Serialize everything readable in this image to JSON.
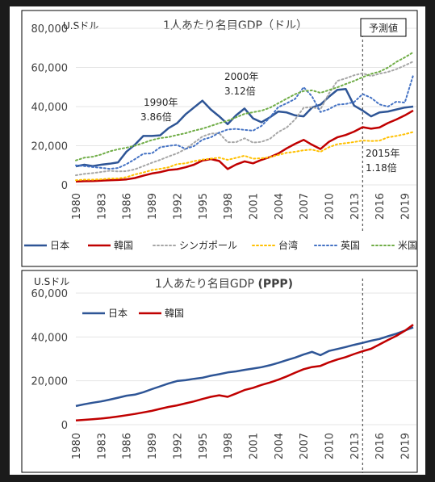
{
  "chart_data": [
    {
      "type": "line",
      "title": "1人あたり名目GDP（ドル）",
      "ylabel": "U.Sドル",
      "ylim": [
        0,
        80000
      ],
      "yticks": [
        "0",
        "20,000",
        "40,000",
        "60,000",
        "80,000"
      ],
      "x": [
        1980,
        1981,
        1982,
        1983,
        1984,
        1985,
        1986,
        1987,
        1988,
        1989,
        1990,
        1991,
        1992,
        1993,
        1994,
        1995,
        1996,
        1997,
        1998,
        1999,
        2000,
        2001,
        2002,
        2003,
        2004,
        2005,
        2006,
        2007,
        2008,
        2009,
        2010,
        2011,
        2012,
        2013,
        2014,
        2015,
        2016,
        2017,
        2018,
        2019,
        2020
      ],
      "xticks": [
        "1980",
        "1983",
        "1986",
        "1989",
        "1992",
        "1995",
        "1998",
        "2001",
        "2004",
        "2007",
        "2010",
        "2013",
        "2016",
        "2019"
      ],
      "forecast_from": 2014,
      "forecast_label": "予測値",
      "series": [
        {
          "name": "日本",
          "color": "#2e5596",
          "style": "solid",
          "values": [
            9500,
            10300,
            9600,
            10300,
            10800,
            11500,
            17000,
            20500,
            25000,
            25000,
            25300,
            29000,
            31500,
            36000,
            39500,
            43000,
            38500,
            35000,
            31000,
            35500,
            39000,
            34000,
            32000,
            34500,
            37500,
            37000,
            35500,
            35000,
            39500,
            41000,
            45000,
            48500,
            49000,
            40500,
            38000,
            35000,
            37000,
            37500,
            38500,
            39500,
            40000
          ]
        },
        {
          "name": "韓国",
          "color": "#c00000",
          "style": "solid",
          "values": [
            1700,
            1900,
            2000,
            2200,
            2400,
            2500,
            2800,
            3500,
            4700,
            5800,
            6500,
            7600,
            8000,
            9000,
            10300,
            12400,
            13200,
            12200,
            8100,
            10400,
            12000,
            11000,
            12800,
            14200,
            16000,
            18700,
            21000,
            23000,
            20500,
            18300,
            22000,
            24300,
            25500,
            27200,
            29500,
            28700,
            29300,
            31600,
            33400,
            35500,
            38000
          ]
        },
        {
          "name": "シンガポール",
          "color": "#a6a6a6",
          "style": "dot",
          "values": [
            4900,
            5600,
            6000,
            6600,
            7200,
            6900,
            7000,
            7900,
            9600,
            11300,
            12800,
            14500,
            16100,
            18300,
            21500,
            24700,
            26200,
            26400,
            21800,
            21800,
            23800,
            21600,
            22000,
            23500,
            27000,
            29300,
            33500,
            39400,
            39700,
            38600,
            46600,
            53100,
            54400,
            56000,
            57000,
            55600,
            56800,
            57700,
            59100,
            61000,
            63000
          ]
        },
        {
          "name": "台湾",
          "color": "#ffc000",
          "style": "dot",
          "values": [
            2400,
            2700,
            2700,
            2900,
            3200,
            3300,
            3900,
            5300,
            6300,
            7600,
            8200,
            9000,
            10600,
            11000,
            12100,
            12900,
            13400,
            13900,
            12800,
            13800,
            14900,
            13400,
            13600,
            14100,
            15300,
            16400,
            16900,
            17700,
            18000,
            16900,
            19200,
            20800,
            21300,
            21900,
            22700,
            22400,
            22600,
            24300,
            25000,
            25900,
            27000
          ]
        },
        {
          "name": "英国",
          "color": "#4472c4",
          "style": "dot",
          "values": [
            10000,
            9600,
            9100,
            8700,
            8200,
            8600,
            10600,
            13100,
            15900,
            16100,
            19200,
            19900,
            20400,
            18400,
            19800,
            23100,
            24300,
            26700,
            28300,
            28600,
            28100,
            27700,
            30100,
            34400,
            39700,
            41700,
            43900,
            49900,
            45200,
            37200,
            38700,
            41000,
            41300,
            42300,
            46400,
            44500,
            41100,
            40000,
            42500,
            42000,
            56000
          ]
        },
        {
          "name": "米国",
          "color": "#70ad47",
          "style": "dot",
          "values": [
            12500,
            13900,
            14400,
            15500,
            17100,
            18200,
            19000,
            20000,
            21400,
            22900,
            23900,
            24400,
            25500,
            26400,
            27700,
            28700,
            30100,
            31500,
            32800,
            34500,
            36300,
            37100,
            37900,
            39400,
            41700,
            44100,
            46300,
            47900,
            48300,
            47000,
            48400,
            49800,
            51500,
            53100,
            55000,
            56700,
            57800,
            59900,
            62800,
            65100,
            67700
          ]
        }
      ],
      "annotations": [
        {
          "year": "1990年",
          "text": "3.86倍"
        },
        {
          "year": "2000年",
          "text": "3.12倍"
        },
        {
          "year": "2015年",
          "text": "1.18倍"
        }
      ]
    },
    {
      "type": "line",
      "title": "1人あたり名目GDP",
      "title_suffix": "(PPP)",
      "ylabel": "U.Sドル",
      "ylim": [
        0,
        60000
      ],
      "yticks": [
        "0",
        "20,000",
        "40,000",
        "60,000"
      ],
      "x": [
        1980,
        1981,
        1982,
        1983,
        1984,
        1985,
        1986,
        1987,
        1988,
        1989,
        1990,
        1991,
        1992,
        1993,
        1994,
        1995,
        1996,
        1997,
        1998,
        1999,
        2000,
        2001,
        2002,
        2003,
        2004,
        2005,
        2006,
        2007,
        2008,
        2009,
        2010,
        2011,
        2012,
        2013,
        2014,
        2015,
        2016,
        2017,
        2018,
        2019,
        2020
      ],
      "xticks": [
        "1980",
        "1983",
        "1986",
        "1989",
        "1992",
        "1995",
        "1998",
        "2001",
        "2004",
        "2007",
        "2010",
        "2013",
        "2016",
        "2019"
      ],
      "forecast_from": 2014,
      "series": [
        {
          "name": "日本",
          "color": "#2e5596",
          "style": "solid",
          "values": [
            8500,
            9300,
            10000,
            10600,
            11400,
            12300,
            13200,
            13700,
            14800,
            16200,
            17500,
            18800,
            19900,
            20300,
            20900,
            21400,
            22300,
            23000,
            23800,
            24300,
            25000,
            25600,
            26200,
            27100,
            28200,
            29400,
            30600,
            32000,
            33200,
            31700,
            33600,
            34500,
            35400,
            36400,
            37300,
            38300,
            39100,
            40300,
            41500,
            42900,
            44400
          ]
        },
        {
          "name": "韓国",
          "color": "#c00000",
          "style": "solid",
          "values": [
            1900,
            2200,
            2500,
            2800,
            3200,
            3700,
            4300,
            4900,
            5600,
            6300,
            7200,
            8100,
            8800,
            9700,
            10600,
            11700,
            12700,
            13400,
            12700,
            14200,
            15800,
            16800,
            18100,
            19200,
            20500,
            22000,
            23700,
            25300,
            26300,
            26800,
            28400,
            29700,
            30800,
            32200,
            33500,
            34600,
            36600,
            38600,
            40500,
            42800,
            45600
          ]
        }
      ]
    }
  ]
}
